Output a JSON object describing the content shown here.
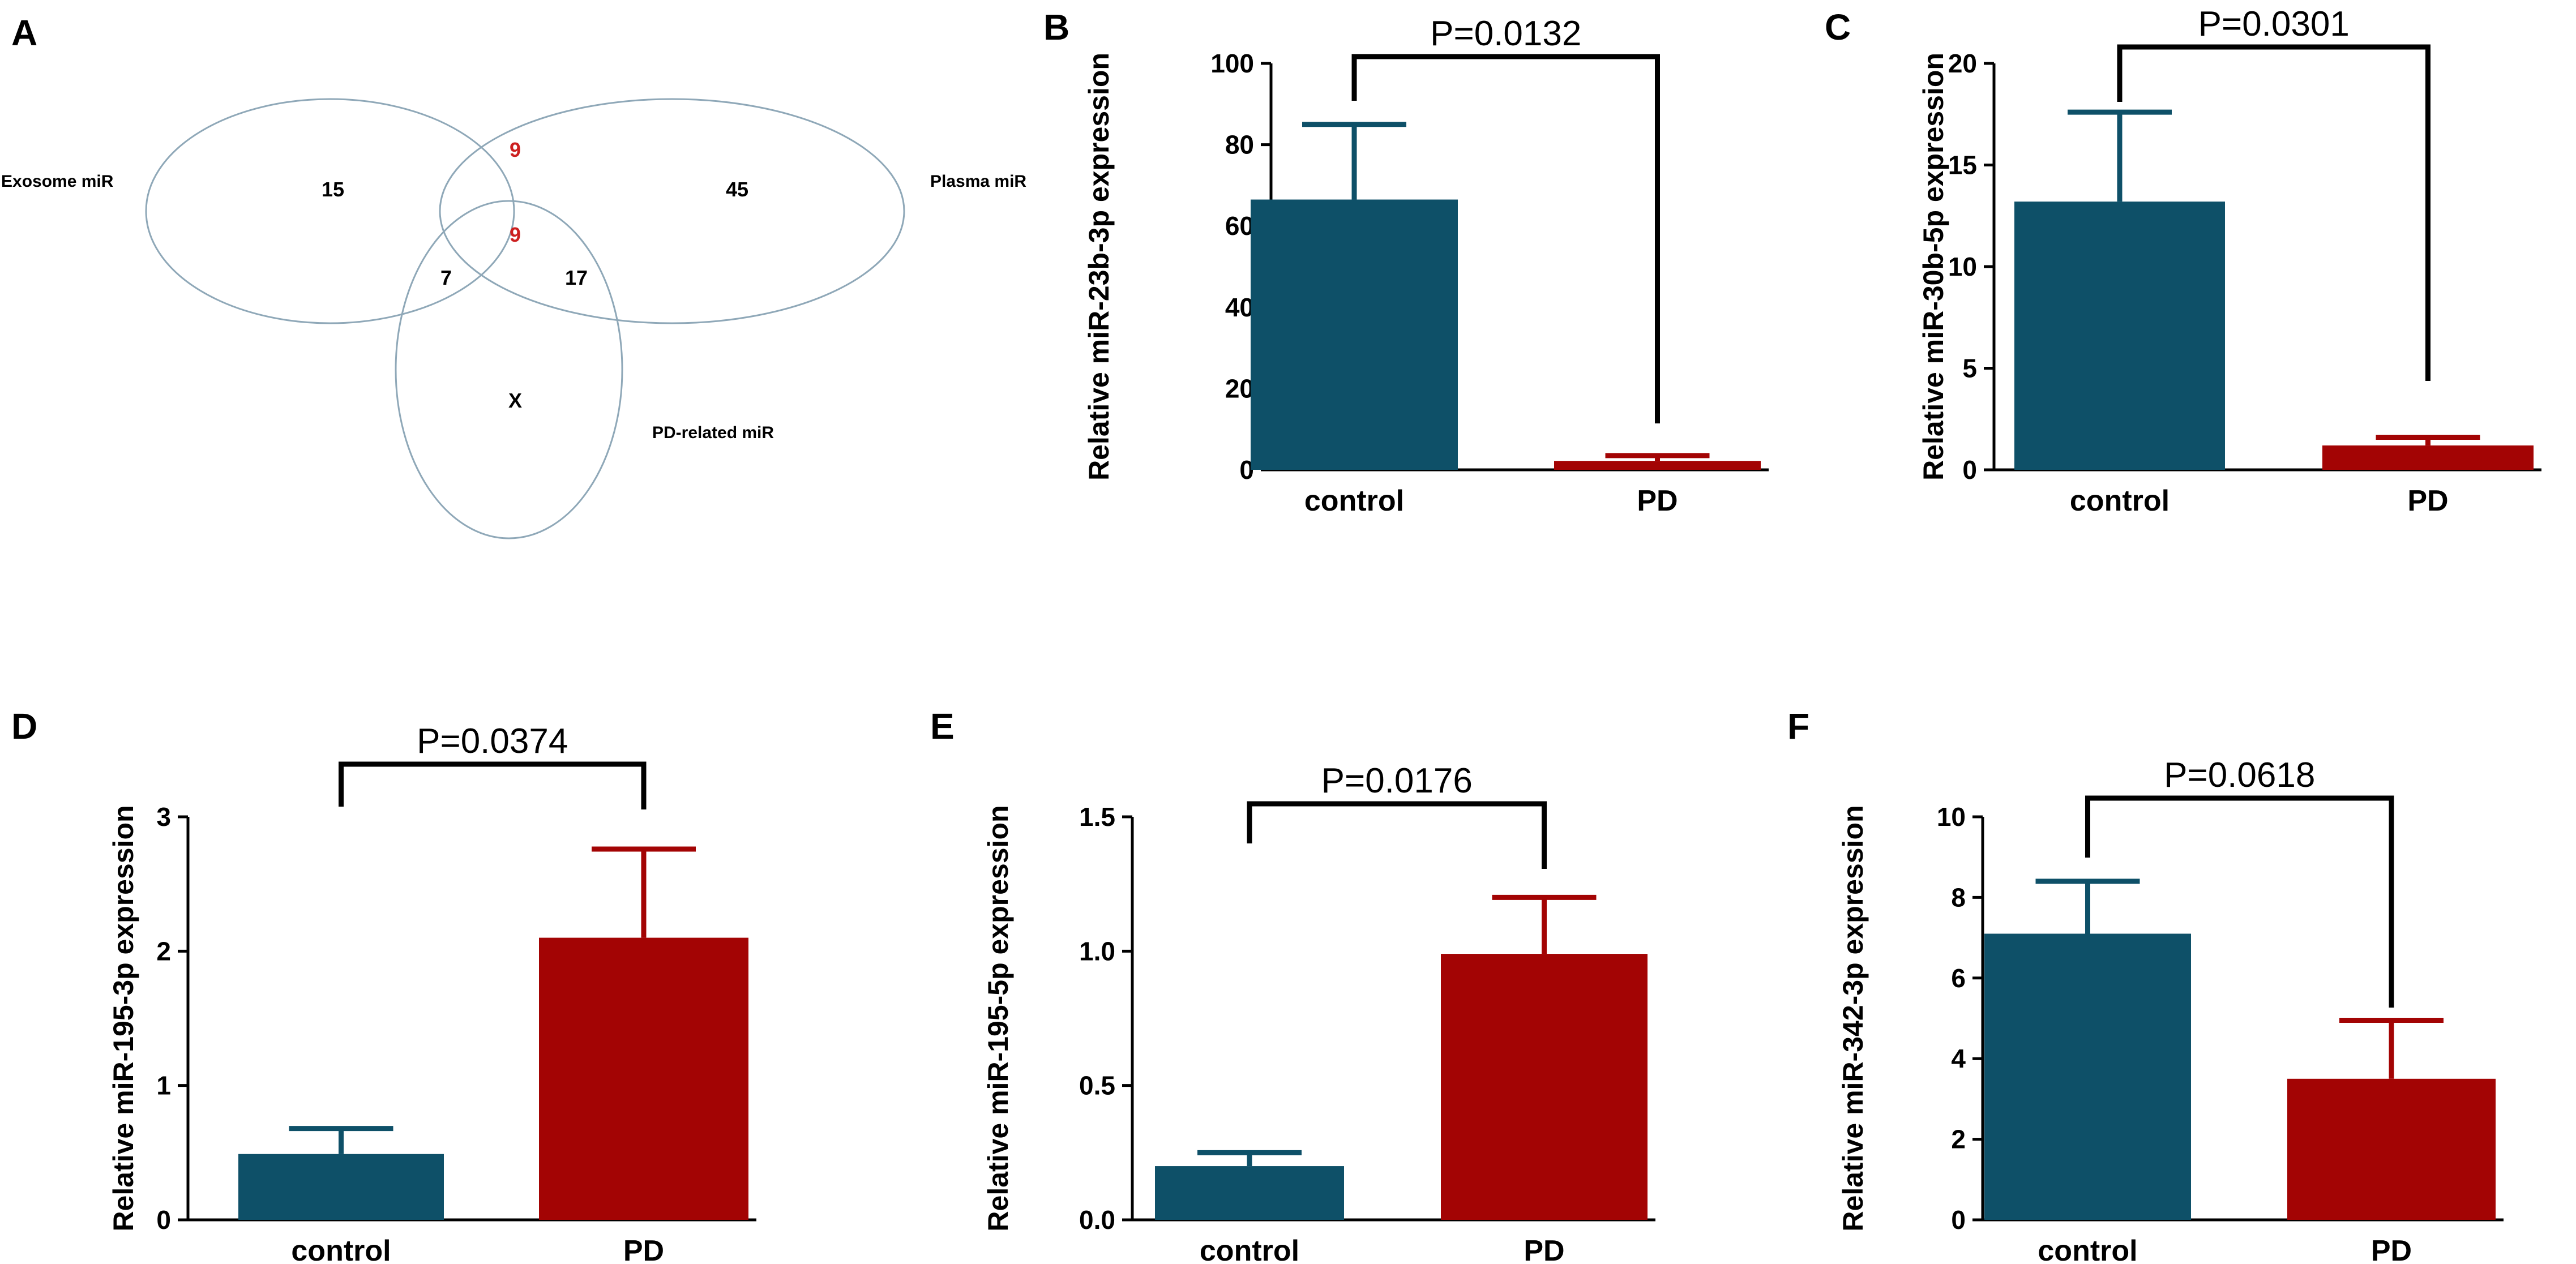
{
  "panel_a": {
    "label": "A",
    "sets": {
      "exosome": "Exosome miR",
      "plasma": "Plasma miR",
      "pd": "PD-related miR"
    },
    "regions": {
      "exosome_only": "15",
      "exosome_plasma": "9",
      "all_three": "9",
      "plasma_only": "45",
      "exosome_pd": "7",
      "plasma_pd": "17",
      "pd_only": "X"
    },
    "colors": {
      "outline": "#8fa8b8",
      "highlight": "#cc1f1f"
    }
  },
  "colors": {
    "control": "#0e5068",
    "pd": "#a30404",
    "axis": "#000000"
  },
  "chart_data": [
    {
      "id": "B",
      "label": "B",
      "type": "bar",
      "categories": [
        "control",
        "PD"
      ],
      "values": [
        66.5,
        2.2
      ],
      "errors": [
        18.5,
        1.3
      ],
      "ylabel": "Relative miR-23b-3p expression",
      "ylim": [
        0,
        100
      ],
      "yticks": [
        0,
        20,
        40,
        60,
        80,
        100
      ],
      "tick_labels": [
        "0",
        "20",
        "40",
        "60",
        "80",
        "100"
      ],
      "p_value": "P=0.0132"
    },
    {
      "id": "C",
      "label": "C",
      "type": "bar",
      "categories": [
        "control",
        "PD"
      ],
      "values": [
        13.2,
        1.2
      ],
      "errors": [
        4.4,
        0.4
      ],
      "ylabel": "Relative miR-30b-5p expression",
      "ylim": [
        0,
        20
      ],
      "yticks": [
        0,
        5,
        10,
        15,
        20
      ],
      "tick_labels": [
        "0",
        "5",
        "10",
        "15",
        "20"
      ],
      "p_value": "P=0.0301"
    },
    {
      "id": "D",
      "label": "D",
      "type": "bar",
      "categories": [
        "control",
        "PD"
      ],
      "values": [
        0.49,
        2.1
      ],
      "errors": [
        0.19,
        0.66
      ],
      "ylabel": "Relative miR-195-3p expression",
      "ylim": [
        0,
        3
      ],
      "yticks": [
        0,
        1,
        2,
        3
      ],
      "tick_labels": [
        "0",
        "1",
        "2",
        "3"
      ],
      "p_value": "P=0.0374"
    },
    {
      "id": "E",
      "label": "E",
      "type": "bar",
      "categories": [
        "control",
        "PD"
      ],
      "values": [
        0.2,
        0.99
      ],
      "errors": [
        0.05,
        0.21
      ],
      "ylabel": "Relative miR-195-5p expression",
      "ylim": [
        0,
        1.5
      ],
      "yticks": [
        0,
        0.5,
        1.0,
        1.5
      ],
      "tick_labels": [
        "0.0",
        "0.5",
        "1.0",
        "1.5"
      ],
      "p_value": "P=0.0176"
    },
    {
      "id": "F",
      "label": "F",
      "type": "bar",
      "categories": [
        "control",
        "PD"
      ],
      "values": [
        7.1,
        3.5
      ],
      "errors": [
        1.3,
        1.45
      ],
      "ylabel": "Relative miR-342-3p expression",
      "ylim": [
        0,
        10
      ],
      "yticks": [
        0,
        2,
        4,
        6,
        8,
        10
      ],
      "tick_labels": [
        "0",
        "2",
        "4",
        "6",
        "8",
        "10"
      ],
      "p_value": "P=0.0618"
    }
  ]
}
